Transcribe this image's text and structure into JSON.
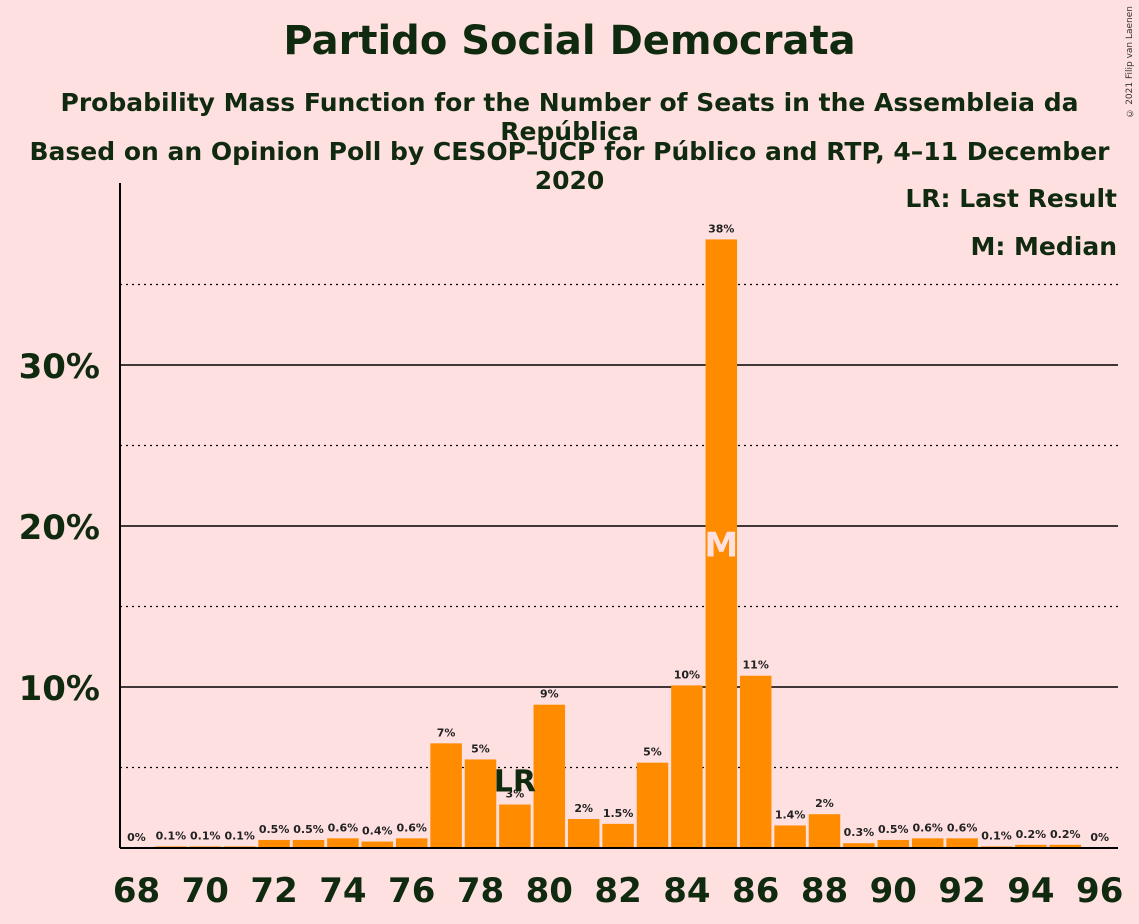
{
  "chart_data": {
    "type": "bar",
    "title": "Partido Social Democrata",
    "subtitle_1": "Probability Mass Function for the Number of Seats in the Assembleia da República",
    "subtitle_2": "Based on an Opinion Poll by CESOP–UCP for Público and RTP, 4–11 December 2020",
    "copyright": "© 2021 Filip van Laenen",
    "legend": {
      "last_result": "LR: Last Result",
      "median": "M: Median"
    },
    "categories": [
      68,
      69,
      70,
      71,
      72,
      73,
      74,
      75,
      76,
      77,
      78,
      79,
      80,
      81,
      82,
      83,
      84,
      85,
      86,
      87,
      88,
      89,
      90,
      91,
      92,
      93,
      94,
      95,
      96
    ],
    "values": [
      0.0,
      0.1,
      0.1,
      0.1,
      0.5,
      0.5,
      0.6,
      0.4,
      0.6,
      6.5,
      5.5,
      2.7,
      8.9,
      1.8,
      1.5,
      5.3,
      10.1,
      37.8,
      10.7,
      1.4,
      2.1,
      0.3,
      0.5,
      0.6,
      0.6,
      0.1,
      0.2,
      0.2,
      0.0
    ],
    "labels": [
      "0%",
      "0.1%",
      "0.1%",
      "0.1%",
      "0.5%",
      "0.5%",
      "0.6%",
      "0.4%",
      "0.6%",
      "7%",
      "5%",
      "3%",
      "9%",
      "2%",
      "1.5%",
      "5%",
      "10%",
      "38%",
      "11%",
      "1.4%",
      "2%",
      "0.3%",
      "0.5%",
      "0.6%",
      "0.6%",
      "0.1%",
      "0.2%",
      "0.2%",
      "0%"
    ],
    "x_tick_labels": [
      "68",
      "70",
      "72",
      "74",
      "76",
      "78",
      "80",
      "82",
      "84",
      "86",
      "88",
      "90",
      "92",
      "94",
      "96"
    ],
    "y_tick_labels": [
      "10%",
      "20%",
      "30%"
    ],
    "y_ticks": [
      10,
      20,
      30
    ],
    "ylim": [
      0,
      40
    ],
    "last_result_seat": 79,
    "last_result_marker": "LR",
    "median_seat": 85,
    "median_marker": "M",
    "bar_color": "#ff8c00",
    "background_color": "#ffe0e0",
    "text_color": "#0f2a0f"
  }
}
